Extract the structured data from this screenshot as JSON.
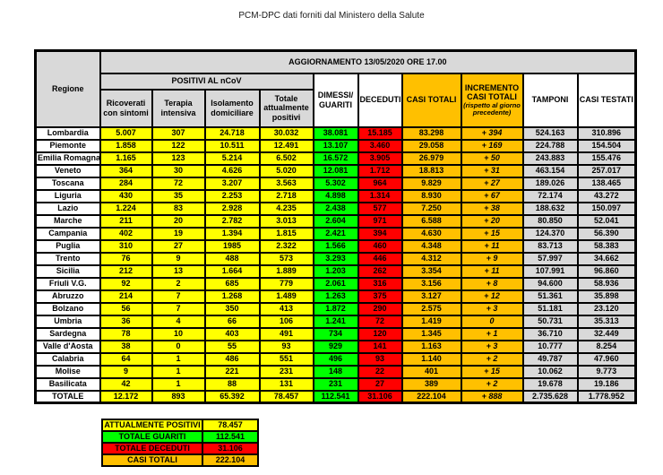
{
  "title": "PCM-DPC dati forniti dal Ministero della Salute",
  "colors": {
    "yellow": "#FFFF00",
    "green": "#00FF00",
    "red": "#FF0000",
    "orange": "#FFC000",
    "grey": "#D9D9D9",
    "border": "#000000"
  },
  "table": {
    "region_header": "Regione",
    "update_header": "AGGIORNAMENTO 13/05/2020 ORE 17.00",
    "positivi_group": "POSITIVI AL nCoV",
    "col_ricoverati": "Ricoverati con sintomi",
    "col_terapia": "Terapia intensiva",
    "col_isolamento": "Isolamento domiciliare",
    "col_totale_positivi": "Totale attualmente positivi",
    "col_dimessi": "DIMESSI/ GUARITI",
    "col_deceduti": "DECEDUTI",
    "col_casi_totali": "CASI TOTALI",
    "col_incremento": "INCREMENTO CASI  TOTALI",
    "col_incremento_note": "(rispetto al giorno precedente)",
    "col_tamponi": "TAMPONI",
    "col_casi_testati": "CASI TESTATI",
    "rows": [
      {
        "region": "Lombardia",
        "values": [
          "5.007",
          "307",
          "24.718",
          "30.032",
          "38.081",
          "15.185",
          "83.298",
          "+ 394",
          "524.163",
          "310.896"
        ]
      },
      {
        "region": "Piemonte",
        "values": [
          "1.858",
          "122",
          "10.511",
          "12.491",
          "13.107",
          "3.460",
          "29.058",
          "+ 169",
          "224.788",
          "154.504"
        ]
      },
      {
        "region": "Emilia Romagna",
        "values": [
          "1.165",
          "123",
          "5.214",
          "6.502",
          "16.572",
          "3.905",
          "26.979",
          "+ 50",
          "243.883",
          "155.476"
        ]
      },
      {
        "region": "Veneto",
        "values": [
          "364",
          "30",
          "4.626",
          "5.020",
          "12.081",
          "1.712",
          "18.813",
          "+ 31",
          "463.154",
          "257.017"
        ]
      },
      {
        "region": "Toscana",
        "values": [
          "284",
          "72",
          "3.207",
          "3.563",
          "5.302",
          "964",
          "9.829",
          "+ 27",
          "189.026",
          "138.465"
        ]
      },
      {
        "region": "Liguria",
        "values": [
          "430",
          "35",
          "2.253",
          "2.718",
          "4.898",
          "1.314",
          "8.930",
          "+ 67",
          "72.174",
          "43.272"
        ]
      },
      {
        "region": "Lazio",
        "values": [
          "1.224",
          "83",
          "2.928",
          "4.235",
          "2.438",
          "577",
          "7.250",
          "+ 38",
          "188.632",
          "150.097"
        ]
      },
      {
        "region": "Marche",
        "values": [
          "211",
          "20",
          "2.782",
          "3.013",
          "2.604",
          "971",
          "6.588",
          "+ 20",
          "80.850",
          "52.041"
        ]
      },
      {
        "region": "Campania",
        "values": [
          "402",
          "19",
          "1.394",
          "1.815",
          "2.421",
          "394",
          "4.630",
          "+ 15",
          "124.370",
          "56.390"
        ]
      },
      {
        "region": "Puglia",
        "values": [
          "310",
          "27",
          "1985",
          "2.322",
          "1.566",
          "460",
          "4.348",
          "+ 11",
          "83.713",
          "58.383"
        ]
      },
      {
        "region": "Trento",
        "values": [
          "76",
          "9",
          "488",
          "573",
          "3.293",
          "446",
          "4.312",
          "+ 9",
          "57.997",
          "34.662"
        ]
      },
      {
        "region": "Sicilia",
        "values": [
          "212",
          "13",
          "1.664",
          "1.889",
          "1.203",
          "262",
          "3.354",
          "+ 11",
          "107.991",
          "96.860"
        ]
      },
      {
        "region": "Friuli V.G.",
        "values": [
          "92",
          "2",
          "685",
          "779",
          "2.061",
          "316",
          "3.156",
          "+ 8",
          "94.600",
          "58.936"
        ]
      },
      {
        "region": "Abruzzo",
        "values": [
          "214",
          "7",
          "1.268",
          "1.489",
          "1.263",
          "375",
          "3.127",
          "+ 12",
          "51.361",
          "35.898"
        ]
      },
      {
        "region": "Bolzano",
        "values": [
          "56",
          "7",
          "350",
          "413",
          "1.872",
          "290",
          "2.575",
          "+ 3",
          "51.181",
          "23.120"
        ]
      },
      {
        "region": "Umbria",
        "values": [
          "36",
          "4",
          "66",
          "106",
          "1.241",
          "72",
          "1.419",
          "0",
          "50.731",
          "35.313"
        ]
      },
      {
        "region": "Sardegna",
        "values": [
          "78",
          "10",
          "403",
          "491",
          "734",
          "120",
          "1.345",
          "+ 1",
          "36.710",
          "32.449"
        ]
      },
      {
        "region": "Valle d'Aosta",
        "values": [
          "38",
          "0",
          "55",
          "93",
          "929",
          "141",
          "1.163",
          "+ 3",
          "10.777",
          "8.254"
        ]
      },
      {
        "region": "Calabria",
        "values": [
          "64",
          "1",
          "486",
          "551",
          "496",
          "93",
          "1.140",
          "+ 2",
          "49.787",
          "47.960"
        ]
      },
      {
        "region": "Molise",
        "values": [
          "9",
          "1",
          "221",
          "231",
          "148",
          "22",
          "401",
          "+ 15",
          "10.062",
          "9.773"
        ]
      },
      {
        "region": "Basilicata",
        "values": [
          "42",
          "1",
          "88",
          "131",
          "231",
          "27",
          "389",
          "+ 2",
          "19.678",
          "19.186"
        ]
      },
      {
        "region": "TOTALE",
        "values": [
          "12.172",
          "893",
          "65.392",
          "78.457",
          "112.541",
          "31.106",
          "222.104",
          "+ 888",
          "2.735.628",
          "1.778.952"
        ]
      }
    ]
  },
  "summary": {
    "rows": [
      {
        "label": "ATTUALMENTE POSITIVI",
        "value": "78.457",
        "color": "#FFFF00"
      },
      {
        "label": "TOTALE GUARITI",
        "value": "112.541",
        "color": "#00FF00"
      },
      {
        "label": "TOTALE DECEDUTI",
        "value": "31.106",
        "color": "#FF0000"
      },
      {
        "label": "CASI TOTALI",
        "value": "222.104",
        "color": "#FFC000"
      }
    ]
  }
}
